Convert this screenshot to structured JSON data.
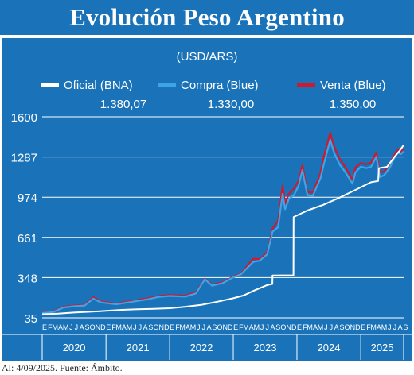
{
  "title": "Evolución Peso Argentino",
  "footer": "Al: 4/09/2025. Fuente: Ámbito.",
  "colors": {
    "panel": "#1a73b8",
    "oficial": "#ffffff",
    "compra": "#3ea4e6",
    "venta": "#d0192f",
    "grid": "#ffffff",
    "text": "#ffffff"
  },
  "chart_data": {
    "type": "line",
    "unit_label": "(USD/ARS)",
    "x_range": [
      "2020-01-01",
      "2025-09-04"
    ],
    "ylim": [
      35,
      1600
    ],
    "yticks": [
      35,
      348,
      661,
      974,
      1287,
      1600
    ],
    "ytick_labels": [
      "35",
      "348",
      "661",
      "974",
      "1287",
      "1600"
    ],
    "grid": true,
    "legend_position": "top",
    "legend": [
      {
        "name": "Oficial (BNA)",
        "last_value": "1.380,07",
        "color": "#ffffff"
      },
      {
        "name": "Compra (Blue)",
        "last_value": "1.330,00",
        "color": "#3ea4e6"
      },
      {
        "name": "Venta (Blue)",
        "last_value": "1.350,00",
        "color": "#d0192f"
      }
    ],
    "year_labels": [
      "2020",
      "2021",
      "2022",
      "2023",
      "2024",
      "2025"
    ],
    "month_letters": [
      "E",
      "F",
      "M",
      "A",
      "M",
      "J",
      "J",
      "A",
      "S",
      "O",
      "N",
      "D"
    ],
    "months_last_year": 9,
    "series": [
      {
        "name": "Oficial (BNA)",
        "points": [
          [
            "2020-01-01",
            63
          ],
          [
            "2020-04-01",
            68
          ],
          [
            "2020-07-01",
            76
          ],
          [
            "2020-10-01",
            82
          ],
          [
            "2021-01-01",
            89
          ],
          [
            "2021-04-01",
            97
          ],
          [
            "2021-07-01",
            101
          ],
          [
            "2021-10-01",
            105
          ],
          [
            "2022-01-01",
            109
          ],
          [
            "2022-04-01",
            121
          ],
          [
            "2022-07-01",
            135
          ],
          [
            "2022-10-01",
            160
          ],
          [
            "2023-01-01",
            187
          ],
          [
            "2023-03-01",
            209
          ],
          [
            "2023-05-01",
            247
          ],
          [
            "2023-07-15",
            290
          ],
          [
            "2023-08-13",
            298
          ],
          [
            "2023-08-14",
            365
          ],
          [
            "2023-12-12",
            366
          ],
          [
            "2023-12-13",
            820
          ],
          [
            "2024-03-01",
            870
          ],
          [
            "2024-06-01",
            915
          ],
          [
            "2024-09-01",
            970
          ],
          [
            "2024-12-01",
            1030
          ],
          [
            "2025-03-01",
            1090
          ],
          [
            "2025-04-11",
            1100
          ],
          [
            "2025-04-15",
            1200
          ],
          [
            "2025-06-01",
            1210
          ],
          [
            "2025-07-15",
            1290
          ],
          [
            "2025-08-15",
            1340
          ],
          [
            "2025-09-04",
            1380
          ]
        ]
      },
      {
        "name": "Compra (Blue)",
        "points": [
          [
            "2020-01-01",
            73
          ],
          [
            "2020-03-01",
            78
          ],
          [
            "2020-05-01",
            115
          ],
          [
            "2020-07-01",
            125
          ],
          [
            "2020-09-01",
            130
          ],
          [
            "2020-10-20",
            185
          ],
          [
            "2020-12-01",
            155
          ],
          [
            "2021-03-01",
            140
          ],
          [
            "2021-06-01",
            160
          ],
          [
            "2021-09-01",
            180
          ],
          [
            "2021-11-01",
            198
          ],
          [
            "2022-01-01",
            205
          ],
          [
            "2022-04-01",
            200
          ],
          [
            "2022-06-01",
            225
          ],
          [
            "2022-07-22",
            335
          ],
          [
            "2022-09-01",
            285
          ],
          [
            "2022-11-01",
            305
          ],
          [
            "2023-01-01",
            350
          ],
          [
            "2023-02-15",
            375
          ],
          [
            "2023-04-25",
            470
          ],
          [
            "2023-06-01",
            480
          ],
          [
            "2023-07-15",
            530
          ],
          [
            "2023-08-14",
            705
          ],
          [
            "2023-09-15",
            740
          ],
          [
            "2023-10-11",
            1000
          ],
          [
            "2023-10-25",
            880
          ],
          [
            "2023-11-15",
            960
          ],
          [
            "2023-12-15",
            990
          ],
          [
            "2024-01-10",
            1060
          ],
          [
            "2024-02-01",
            1185
          ],
          [
            "2024-03-01",
            990
          ],
          [
            "2024-04-01",
            985
          ],
          [
            "2024-05-15",
            1120
          ],
          [
            "2024-06-01",
            1220
          ],
          [
            "2024-07-10",
            1420
          ],
          [
            "2024-08-01",
            1320
          ],
          [
            "2024-09-01",
            1230
          ],
          [
            "2024-10-01",
            1175
          ],
          [
            "2024-11-15",
            1080
          ],
          [
            "2024-12-01",
            1165
          ],
          [
            "2025-01-01",
            1210
          ],
          [
            "2025-02-01",
            1200
          ],
          [
            "2025-03-01",
            1210
          ],
          [
            "2025-04-01",
            1290
          ],
          [
            "2025-04-20",
            1130
          ],
          [
            "2025-05-15",
            1145
          ],
          [
            "2025-06-15",
            1200
          ],
          [
            "2025-07-15",
            1285
          ],
          [
            "2025-08-01",
            1320
          ],
          [
            "2025-08-20",
            1310
          ],
          [
            "2025-09-04",
            1330
          ]
        ]
      },
      {
        "name": "Venta (Blue)",
        "points": [
          [
            "2020-01-01",
            77
          ],
          [
            "2020-03-01",
            82
          ],
          [
            "2020-05-01",
            120
          ],
          [
            "2020-07-01",
            130
          ],
          [
            "2020-09-01",
            136
          ],
          [
            "2020-10-20",
            195
          ],
          [
            "2020-12-01",
            162
          ],
          [
            "2021-03-01",
            146
          ],
          [
            "2021-06-01",
            167
          ],
          [
            "2021-09-01",
            188
          ],
          [
            "2021-11-01",
            205
          ],
          [
            "2022-01-01",
            212
          ],
          [
            "2022-04-01",
            207
          ],
          [
            "2022-06-01",
            235
          ],
          [
            "2022-07-22",
            340
          ],
          [
            "2022-09-01",
            292
          ],
          [
            "2022-11-01",
            312
          ],
          [
            "2023-01-01",
            355
          ],
          [
            "2023-02-15",
            380
          ],
          [
            "2023-04-25",
            495
          ],
          [
            "2023-06-01",
            492
          ],
          [
            "2023-07-15",
            545
          ],
          [
            "2023-08-14",
            730
          ],
          [
            "2023-09-15",
            790
          ],
          [
            "2023-10-11",
            1065
          ],
          [
            "2023-10-25",
            920
          ],
          [
            "2023-11-15",
            1000
          ],
          [
            "2023-12-15",
            1040
          ],
          [
            "2024-01-10",
            1100
          ],
          [
            "2024-02-01",
            1225
          ],
          [
            "2024-03-01",
            1015
          ],
          [
            "2024-04-01",
            1010
          ],
          [
            "2024-05-15",
            1160
          ],
          [
            "2024-06-01",
            1280
          ],
          [
            "2024-07-10",
            1475
          ],
          [
            "2024-08-01",
            1370
          ],
          [
            "2024-09-01",
            1275
          ],
          [
            "2024-10-01",
            1215
          ],
          [
            "2024-11-15",
            1110
          ],
          [
            "2024-12-01",
            1205
          ],
          [
            "2025-01-01",
            1240
          ],
          [
            "2025-02-01",
            1230
          ],
          [
            "2025-03-01",
            1240
          ],
          [
            "2025-04-01",
            1325
          ],
          [
            "2025-04-20",
            1165
          ],
          [
            "2025-05-15",
            1175
          ],
          [
            "2025-06-15",
            1230
          ],
          [
            "2025-07-15",
            1310
          ],
          [
            "2025-08-01",
            1345
          ],
          [
            "2025-08-20",
            1330
          ],
          [
            "2025-09-04",
            1350
          ]
        ]
      }
    ]
  }
}
